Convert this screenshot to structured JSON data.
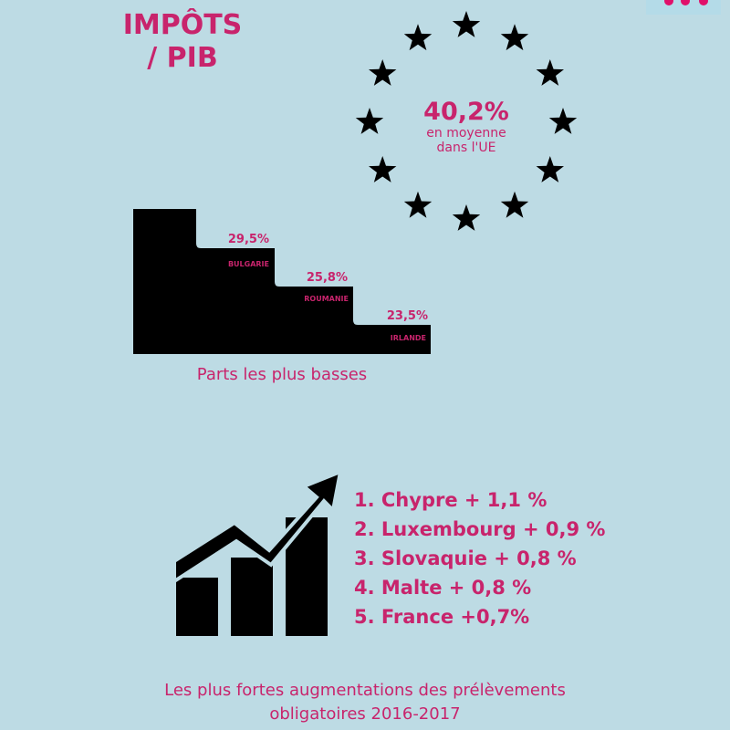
{
  "title_line1": "IMPÔTS",
  "title_line2": "/ PIB",
  "eu_average": {
    "value": "40,2%",
    "line1": "en moyenne",
    "line2": "dans l'UE",
    "icon": "eu-stars-circle"
  },
  "lowest": {
    "caption": "Parts les plus basses",
    "items": [
      {
        "country": "BULGARIE",
        "value": "29,5%"
      },
      {
        "country": "ROUMANIE",
        "value": "25,8%"
      },
      {
        "country": "IRLANDE",
        "value": "23,5%"
      }
    ]
  },
  "increases": {
    "icon": "growth-chart-arrow",
    "items": [
      "1. Chypre + 1,1 %",
      "2. Luxembourg + 0,9 %",
      "3. Slovaquie + 0,8 %",
      "4. Malte + 0,8 %",
      "5. France +0,7%"
    ],
    "caption_line1": "Les plus fortes augmentations des prélèvements",
    "caption_line2": "obligatoires  2016-2017"
  },
  "colors": {
    "background": "#bddbe4",
    "accent": "#c8246c",
    "dark": "#000000"
  }
}
